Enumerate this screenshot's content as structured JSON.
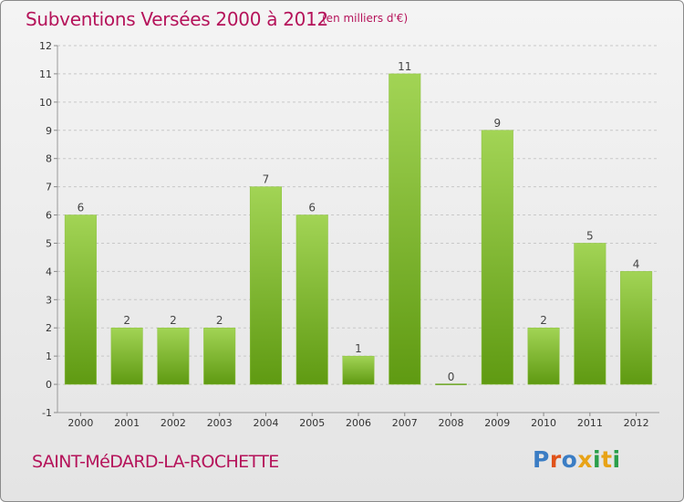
{
  "header": {
    "title": "Subventions Versées 2000 à 2012",
    "subtitle": "(en milliers d'€)"
  },
  "footer": {
    "commune": "SAINT-MéDARD-LA-ROCHETTE",
    "logo": "Proxiti"
  },
  "colors": {
    "title": "#b5135a",
    "bar_light": "#a2d455",
    "bar_dark": "#5f9a12",
    "logo_letters": [
      "#3b7dc4",
      "#e0531b",
      "#3b7dc4",
      "#e8a317",
      "#2a9e4a",
      "#e8a317",
      "#2a9e4a"
    ]
  },
  "chart_data": {
    "type": "bar",
    "title": "Subventions Versées 2000 à 2012",
    "subtitle": "(en milliers d'€)",
    "categories": [
      "2000",
      "2001",
      "2002",
      "2003",
      "2004",
      "2005",
      "2006",
      "2007",
      "2008",
      "2009",
      "2010",
      "2011",
      "2012"
    ],
    "values": [
      6,
      2,
      2,
      2,
      7,
      6,
      1,
      11,
      0,
      9,
      2,
      5,
      4
    ],
    "data_labels": [
      "6",
      "2",
      "2",
      "2",
      "7",
      "6",
      "1",
      "11",
      "0",
      "9",
      "2",
      "5",
      "4"
    ],
    "yticks": [
      "-1",
      "0",
      "1",
      "2",
      "3",
      "4",
      "5",
      "6",
      "7",
      "8",
      "9",
      "10",
      "11",
      "12"
    ],
    "ylim": [
      -1,
      12
    ],
    "grid": true,
    "legend": "none"
  }
}
